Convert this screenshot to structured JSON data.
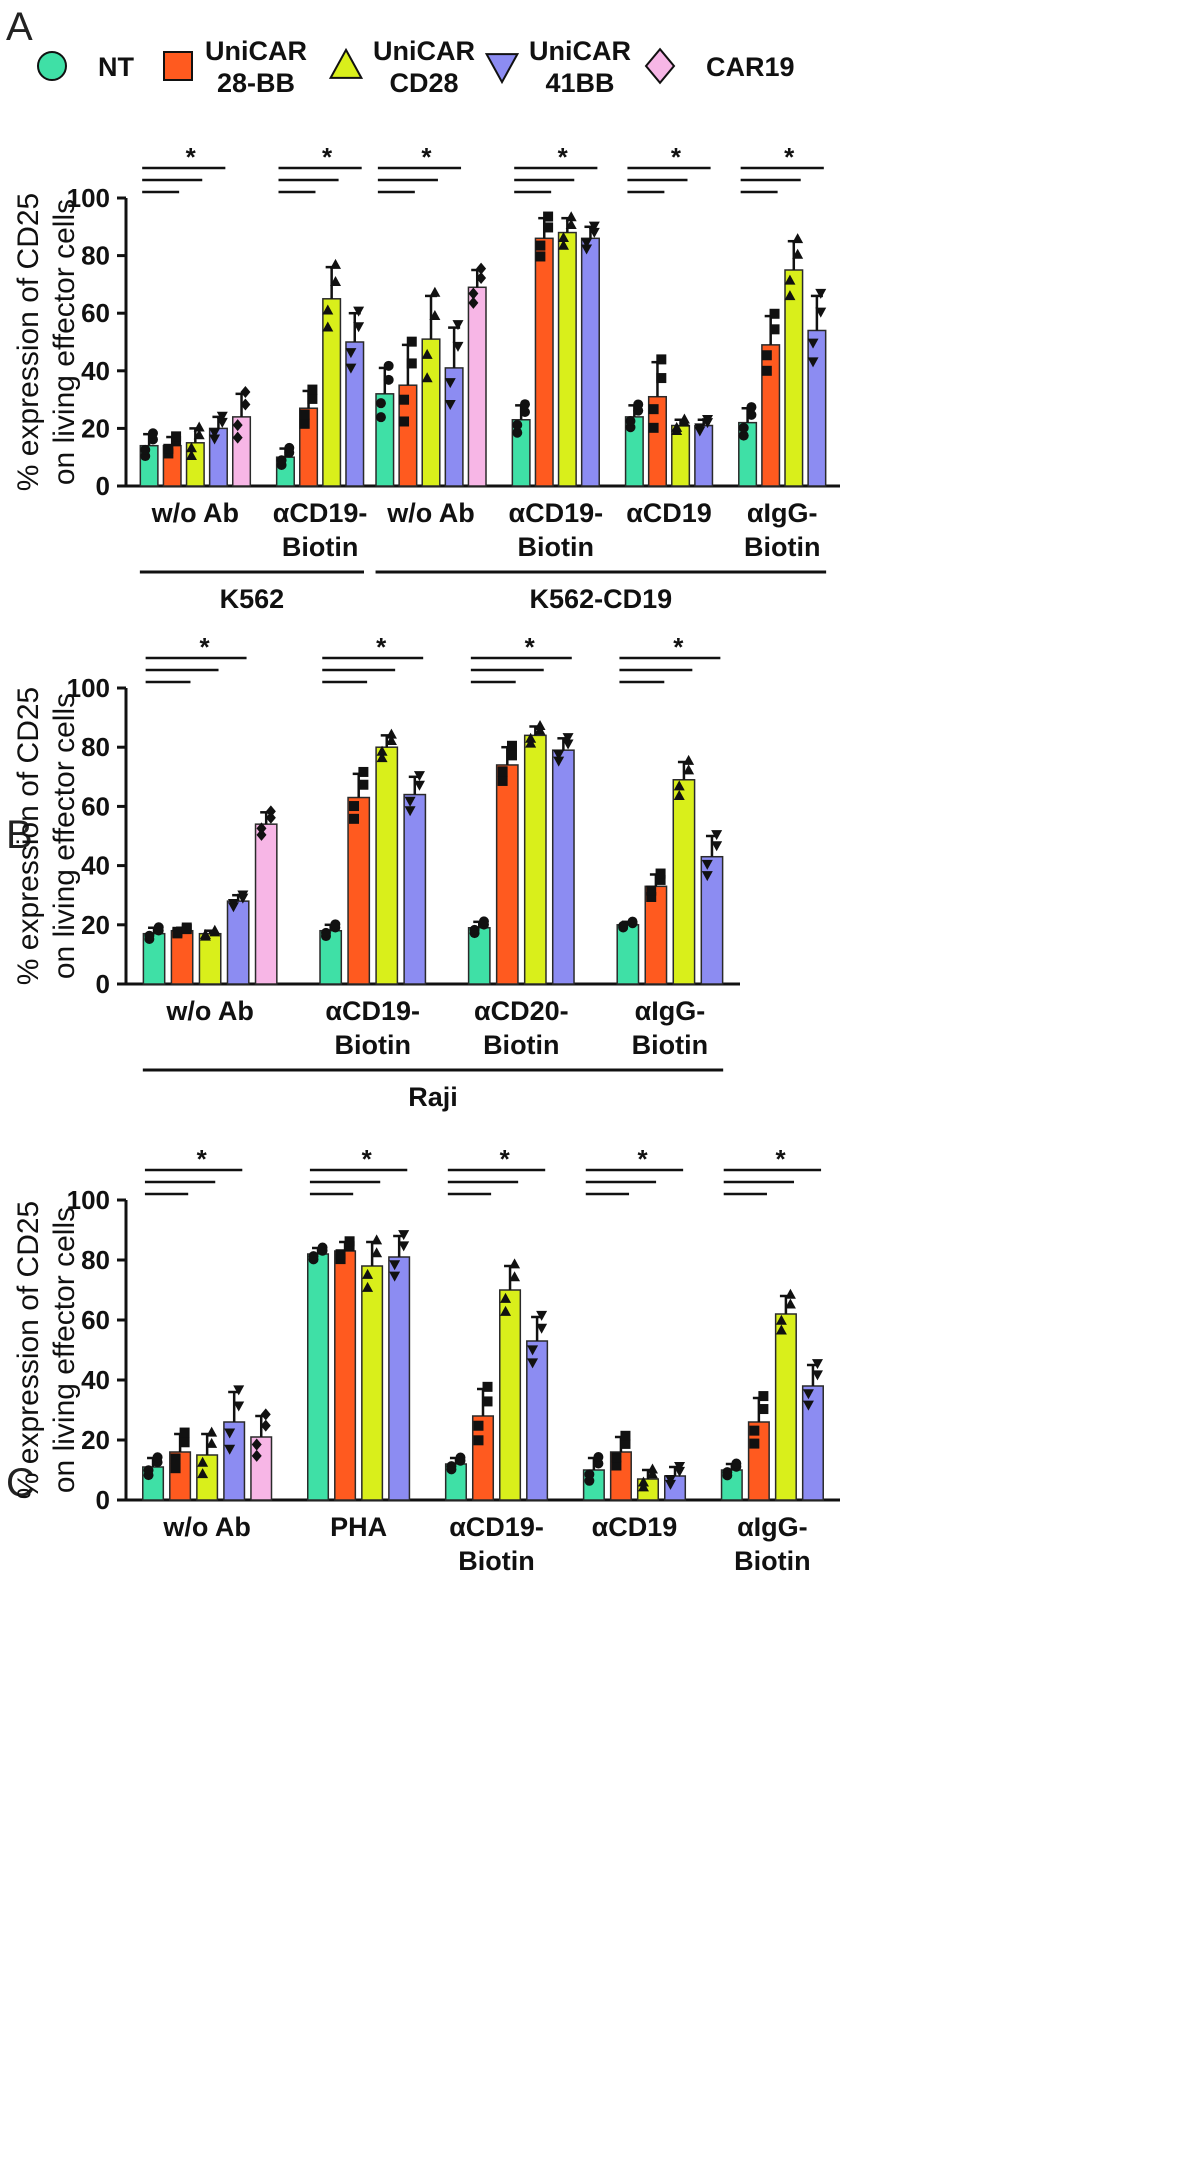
{
  "colors": {
    "NT": "#3fe0a6",
    "UniCAR 28-BB": "#ff5a1f",
    "UniCAR CD28": "#d9ef1b",
    "UniCAR 41BB": "#8c8cf2",
    "CAR19": "#f7b6e6"
  },
  "legend": [
    {
      "key": "NT",
      "lines": [
        "NT"
      ],
      "marker": "circle"
    },
    {
      "key": "UniCAR 28-BB",
      "lines": [
        "UniCAR",
        "28-BB"
      ],
      "marker": "square"
    },
    {
      "key": "UniCAR CD28",
      "lines": [
        "UniCAR",
        "CD28"
      ],
      "marker": "triangle-up"
    },
    {
      "key": "UniCAR 41BB",
      "lines": [
        "UniCAR",
        "41BB"
      ],
      "marker": "triangle-down"
    },
    {
      "key": "CAR19",
      "lines": [
        "CAR19"
      ],
      "marker": "diamond"
    }
  ],
  "chart_data": [
    {
      "panel": "A",
      "type": "bar",
      "ylabel_lines": [
        "% expression of CD25",
        "on living effector cells"
      ],
      "ylim": [
        0,
        100
      ],
      "yticks": [
        0,
        20,
        40,
        60,
        80,
        100
      ],
      "groups": [
        {
          "label_lines": [
            "w/o Ab"
          ],
          "bars": [
            {
              "series": "NT",
              "value": 14,
              "err": 4
            },
            {
              "series": "UniCAR 28-BB",
              "value": 14,
              "err": 3
            },
            {
              "series": "UniCAR CD28",
              "value": 15,
              "err": 5
            },
            {
              "series": "UniCAR 41BB",
              "value": 20,
              "err": 4
            },
            {
              "series": "CAR19",
              "value": 24,
              "err": 8
            }
          ]
        },
        {
          "label_lines": [
            "αCD19-",
            "Biotin"
          ],
          "bars": [
            {
              "series": "NT",
              "value": 10,
              "err": 3
            },
            {
              "series": "UniCAR 28-BB",
              "value": 27,
              "err": 6
            },
            {
              "series": "UniCAR CD28",
              "value": 65,
              "err": 11
            },
            {
              "series": "UniCAR 41BB",
              "value": 50,
              "err": 10
            }
          ]
        },
        {
          "label_lines": [
            "w/o Ab"
          ],
          "bars": [
            {
              "series": "NT",
              "value": 32,
              "err": 9
            },
            {
              "series": "UniCAR 28-BB",
              "value": 35,
              "err": 14
            },
            {
              "series": "UniCAR CD28",
              "value": 51,
              "err": 15
            },
            {
              "series": "UniCAR 41BB",
              "value": 41,
              "err": 14
            },
            {
              "series": "CAR19",
              "value": 69,
              "err": 6
            }
          ]
        },
        {
          "label_lines": [
            "αCD19-",
            "Biotin"
          ],
          "bars": [
            {
              "series": "NT",
              "value": 23,
              "err": 5
            },
            {
              "series": "UniCAR 28-BB",
              "value": 86,
              "err": 7
            },
            {
              "series": "UniCAR CD28",
              "value": 88,
              "err": 5
            },
            {
              "series": "UniCAR 41BB",
              "value": 86,
              "err": 4
            }
          ]
        },
        {
          "label_lines": [
            "αCD19"
          ],
          "bars": [
            {
              "series": "NT",
              "value": 24,
              "err": 4
            },
            {
              "series": "UniCAR 28-BB",
              "value": 31,
              "err": 12
            },
            {
              "series": "UniCAR CD28",
              "value": 21,
              "err": 2
            },
            {
              "series": "UniCAR 41BB",
              "value": 21,
              "err": 2
            }
          ]
        },
        {
          "label_lines": [
            "αIgG-",
            "Biotin"
          ],
          "bars": [
            {
              "series": "NT",
              "value": 22,
              "err": 5
            },
            {
              "series": "UniCAR 28-BB",
              "value": 49,
              "err": 10
            },
            {
              "series": "UniCAR CD28",
              "value": 75,
              "err": 10
            },
            {
              "series": "UniCAR 41BB",
              "value": 54,
              "err": 12
            }
          ]
        }
      ],
      "brackets": [
        {
          "label": "K562",
          "groups": [
            0,
            1
          ]
        },
        {
          "label": "K562-CD19",
          "groups": [
            2,
            5
          ]
        }
      ],
      "significance": "*"
    },
    {
      "panel": "B",
      "type": "bar",
      "ylabel_lines": [
        "% expression of CD25",
        "on living effector cells"
      ],
      "ylim": [
        0,
        100
      ],
      "yticks": [
        0,
        20,
        40,
        60,
        80,
        100
      ],
      "groups": [
        {
          "label_lines": [
            "w/o Ab"
          ],
          "bars": [
            {
              "series": "NT",
              "value": 17,
              "err": 2
            },
            {
              "series": "UniCAR 28-BB",
              "value": 18,
              "err": 1
            },
            {
              "series": "UniCAR CD28",
              "value": 17,
              "err": 1
            },
            {
              "series": "UniCAR 41BB",
              "value": 28,
              "err": 2
            },
            {
              "series": "CAR19",
              "value": 54,
              "err": 4
            }
          ]
        },
        {
          "label_lines": [
            "αCD19-",
            "Biotin"
          ],
          "bars": [
            {
              "series": "NT",
              "value": 18,
              "err": 2
            },
            {
              "series": "UniCAR 28-BB",
              "value": 63,
              "err": 8
            },
            {
              "series": "UniCAR CD28",
              "value": 80,
              "err": 4
            },
            {
              "series": "UniCAR 41BB",
              "value": 64,
              "err": 6
            }
          ]
        },
        {
          "label_lines": [
            "αCD20-",
            "Biotin"
          ],
          "bars": [
            {
              "series": "NT",
              "value": 19,
              "err": 2
            },
            {
              "series": "UniCAR 28-BB",
              "value": 74,
              "err": 6
            },
            {
              "series": "UniCAR CD28",
              "value": 84,
              "err": 3
            },
            {
              "series": "UniCAR 41BB",
              "value": 79,
              "err": 4
            }
          ]
        },
        {
          "label_lines": [
            "αIgG-",
            "Biotin"
          ],
          "bars": [
            {
              "series": "NT",
              "value": 20,
              "err": 1
            },
            {
              "series": "UniCAR 28-BB",
              "value": 33,
              "err": 4
            },
            {
              "series": "UniCAR CD28",
              "value": 69,
              "err": 6
            },
            {
              "series": "UniCAR 41BB",
              "value": 43,
              "err": 7
            }
          ]
        }
      ],
      "brackets": [
        {
          "label": "Raji",
          "groups": [
            0,
            3
          ]
        }
      ],
      "significance": "*"
    },
    {
      "panel": "C",
      "type": "bar",
      "ylabel_lines": [
        "% expression of CD25",
        "on living effector cells"
      ],
      "ylim": [
        0,
        100
      ],
      "yticks": [
        0,
        20,
        40,
        60,
        80,
        100
      ],
      "groups": [
        {
          "label_lines": [
            "w/o Ab"
          ],
          "bars": [
            {
              "series": "NT",
              "value": 11,
              "err": 3
            },
            {
              "series": "UniCAR 28-BB",
              "value": 16,
              "err": 6
            },
            {
              "series": "UniCAR CD28",
              "value": 15,
              "err": 7
            },
            {
              "series": "UniCAR 41BB",
              "value": 26,
              "err": 10
            },
            {
              "series": "CAR19",
              "value": 21,
              "err": 7
            }
          ]
        },
        {
          "label_lines": [
            "PHA"
          ],
          "bars": [
            {
              "series": "NT",
              "value": 82,
              "err": 2
            },
            {
              "series": "UniCAR 28-BB",
              "value": 83,
              "err": 3
            },
            {
              "series": "UniCAR CD28",
              "value": 78,
              "err": 8
            },
            {
              "series": "UniCAR 41BB",
              "value": 81,
              "err": 7
            }
          ]
        },
        {
          "label_lines": [
            "αCD19-",
            "Biotin"
          ],
          "bars": [
            {
              "series": "NT",
              "value": 12,
              "err": 2
            },
            {
              "series": "UniCAR 28-BB",
              "value": 28,
              "err": 9
            },
            {
              "series": "UniCAR CD28",
              "value": 70,
              "err": 8
            },
            {
              "series": "UniCAR 41BB",
              "value": 53,
              "err": 8
            }
          ]
        },
        {
          "label_lines": [
            "αCD19"
          ],
          "bars": [
            {
              "series": "NT",
              "value": 10,
              "err": 4
            },
            {
              "series": "UniCAR 28-BB",
              "value": 16,
              "err": 5
            },
            {
              "series": "UniCAR CD28",
              "value": 7,
              "err": 3
            },
            {
              "series": "UniCAR 41BB",
              "value": 8,
              "err": 3
            }
          ]
        },
        {
          "label_lines": [
            "αIgG-",
            "Biotin"
          ],
          "bars": [
            {
              "series": "NT",
              "value": 10,
              "err": 2
            },
            {
              "series": "UniCAR 28-BB",
              "value": 26,
              "err": 8
            },
            {
              "series": "UniCAR CD28",
              "value": 62,
              "err": 6
            },
            {
              "series": "UniCAR 41BB",
              "value": 38,
              "err": 7
            }
          ]
        }
      ],
      "brackets": [],
      "significance": "*"
    }
  ]
}
